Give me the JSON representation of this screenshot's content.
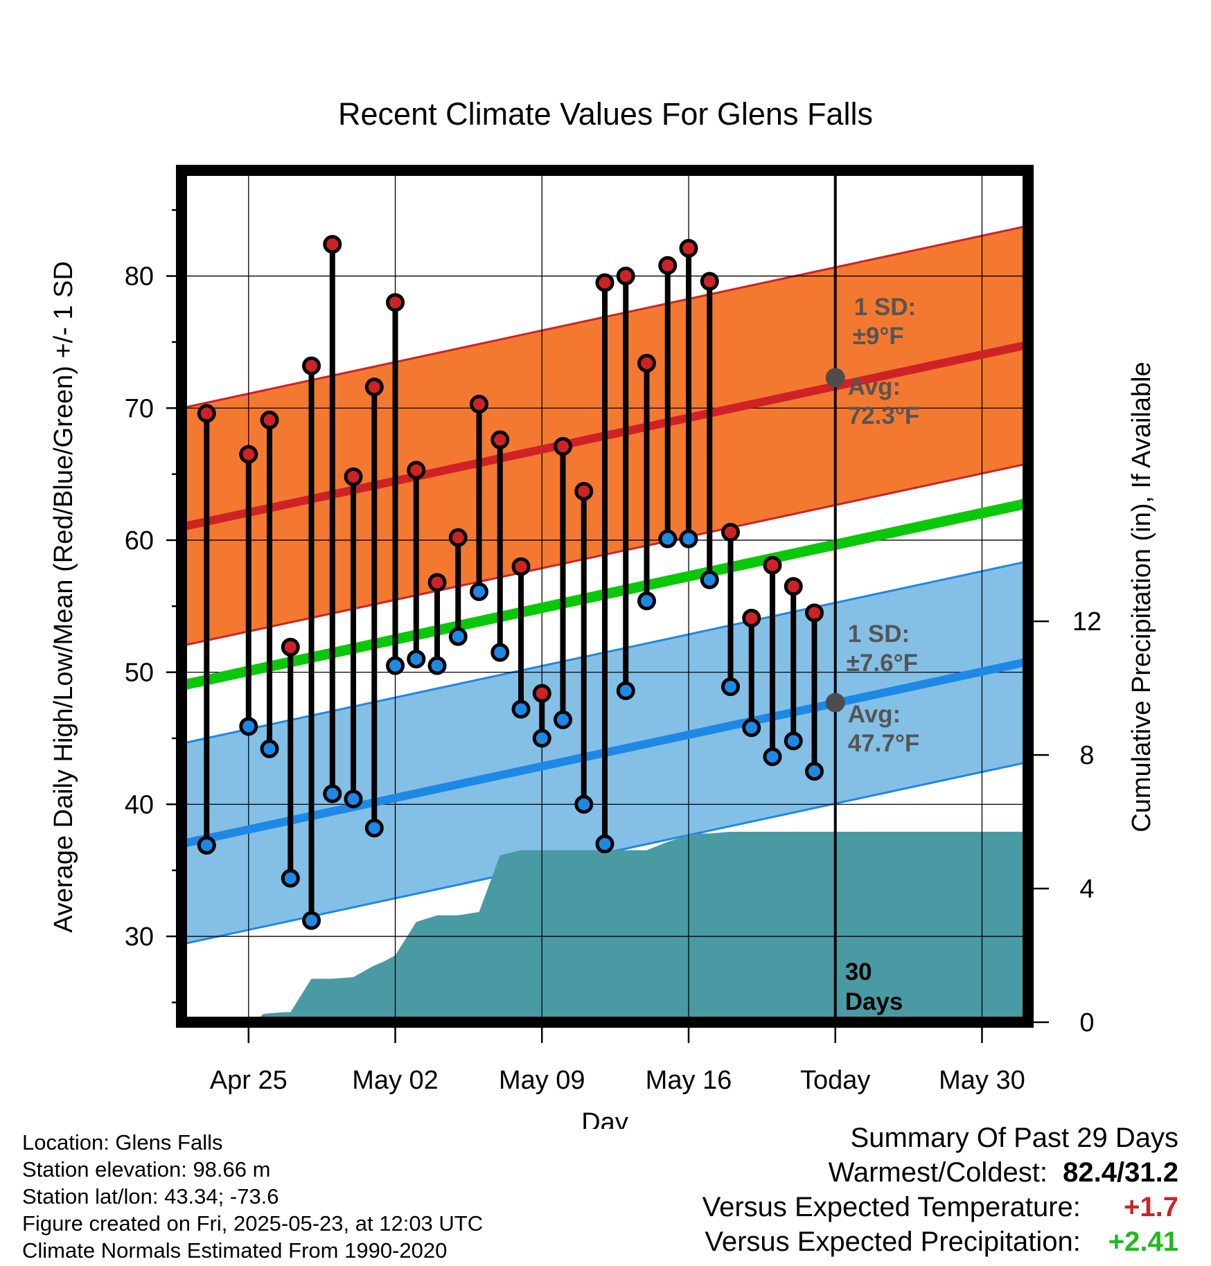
{
  "chart_data": {
    "type": "line",
    "title": "Recent Climate Values For Glens Falls",
    "xlabel": "Day",
    "ylabel": "Average Daily High/Low/Mean (Red/Blue/Green) +/- 1 SD",
    "y2label": "Cumulative Precipitation (in), If Available",
    "xlim": [
      -3.2,
      37.2
    ],
    "ylim": [
      23.5,
      88.0
    ],
    "y2lim": [
      0,
      25.5
    ],
    "x_ticks": [
      {
        "x": 0,
        "label": "Apr 25"
      },
      {
        "x": 7,
        "label": "May 02"
      },
      {
        "x": 14,
        "label": "May 09"
      },
      {
        "x": 21,
        "label": "May 16"
      },
      {
        "x": 28,
        "label": "Today"
      },
      {
        "x": 35,
        "label": "May 30"
      }
    ],
    "y_ticks": [
      30,
      40,
      50,
      60,
      70,
      80
    ],
    "y2_ticks": [
      0,
      4,
      8,
      12
    ],
    "normal_high": {
      "start": 61.0,
      "end": 74.8,
      "sd": 9.0,
      "color": "#cf2226",
      "band_color": "#f47930"
    },
    "normal_low": {
      "start": 37.0,
      "end": 50.8,
      "sd": 7.6,
      "color": "#1e88e5",
      "band_color": "#84c0e6"
    },
    "normal_mean": {
      "start": 49.0,
      "end": 62.8,
      "color": "#08c808"
    },
    "precip_color": "#4a9aa4",
    "days": [
      -2,
      0,
      1,
      2,
      3,
      4,
      5,
      6,
      7,
      8,
      9,
      10,
      11,
      12,
      13,
      14,
      15,
      16,
      17,
      18,
      19,
      20,
      21,
      22,
      23,
      24,
      25,
      26,
      27
    ],
    "highs": [
      69.6,
      66.5,
      69.1,
      51.9,
      73.2,
      82.4,
      64.8,
      71.6,
      78.0,
      65.3,
      56.8,
      60.2,
      70.3,
      67.6,
      58.0,
      48.4,
      67.1,
      63.7,
      79.5,
      80.0,
      73.4,
      80.8,
      82.1,
      79.6,
      60.6,
      54.1,
      58.1,
      56.5,
      54.5
    ],
    "lows": [
      36.9,
      45.9,
      44.2,
      34.4,
      31.2,
      40.8,
      40.4,
      38.2,
      50.5,
      51.0,
      50.5,
      52.7,
      56.1,
      51.5,
      47.2,
      45.0,
      46.4,
      40.0,
      37.0,
      48.6,
      55.4,
      60.1,
      60.1,
      57.0,
      48.9,
      45.8,
      43.6,
      44.8,
      42.5
    ],
    "precip_x": [
      -3.2,
      0.3,
      0.7,
      1.7,
      2.0,
      3.0,
      4.0,
      5.0,
      6.0,
      6.4,
      7.0,
      8.0,
      9.0,
      10.0,
      11.0,
      12.0,
      13.0,
      13.5,
      14.0,
      14.5,
      15.0,
      16.0,
      17.0,
      18.0,
      19.0,
      20.0,
      21.0,
      21.5,
      22.0,
      23.0,
      24.0,
      25.0,
      26.0,
      27.0,
      28.0,
      29.0,
      30.0,
      37.2
    ],
    "precip_y": [
      0,
      0,
      0.25,
      0.3,
      0.3,
      1.3,
      1.3,
      1.35,
      1.7,
      1.8,
      2.0,
      3.0,
      3.2,
      3.2,
      3.3,
      5.0,
      5.15,
      5.15,
      5.15,
      5.15,
      5.15,
      5.15,
      5.15,
      5.15,
      5.15,
      5.4,
      5.6,
      5.65,
      5.65,
      5.7,
      5.7,
      5.7,
      5.7,
      5.7,
      5.7,
      5.7,
      5.7,
      5.7
    ],
    "annotations": {
      "high_sd_label": "1 SD:",
      "high_sd_value": "±9°F",
      "high_avg_label": "Avg:",
      "high_avg_value": "72.3°F",
      "high_avg": 72.3,
      "low_sd_label": "1 SD:",
      "low_sd_value": "±7.6°F",
      "low_avg_label": "Avg:",
      "low_avg_value": "47.7°F",
      "low_avg": 47.7,
      "days_count": "30",
      "days_word": "Days"
    }
  },
  "footer": {
    "location": "Location: Glens Falls",
    "elevation": "Station elevation: 98.66 m",
    "latlon": "Station lat/lon: 43.34; -73.6",
    "created": "Figure created on Fri, 2025-05-23, at 12:03 UTC",
    "normals": "Climate Normals Estimated From 1990-2020"
  },
  "summary": {
    "title": "Summary Of Past 29 Days",
    "warmest_label": "Warmest/Coldest:",
    "warmest_value": "82.4/31.2",
    "temp_label": "Versus Expected Temperature:",
    "temp_value": "+1.7",
    "temp_color": "#cf2226",
    "precip_label": "Versus Expected Precipitation:",
    "precip_value": "+2.41",
    "precip_color": "#1ebb1e"
  }
}
